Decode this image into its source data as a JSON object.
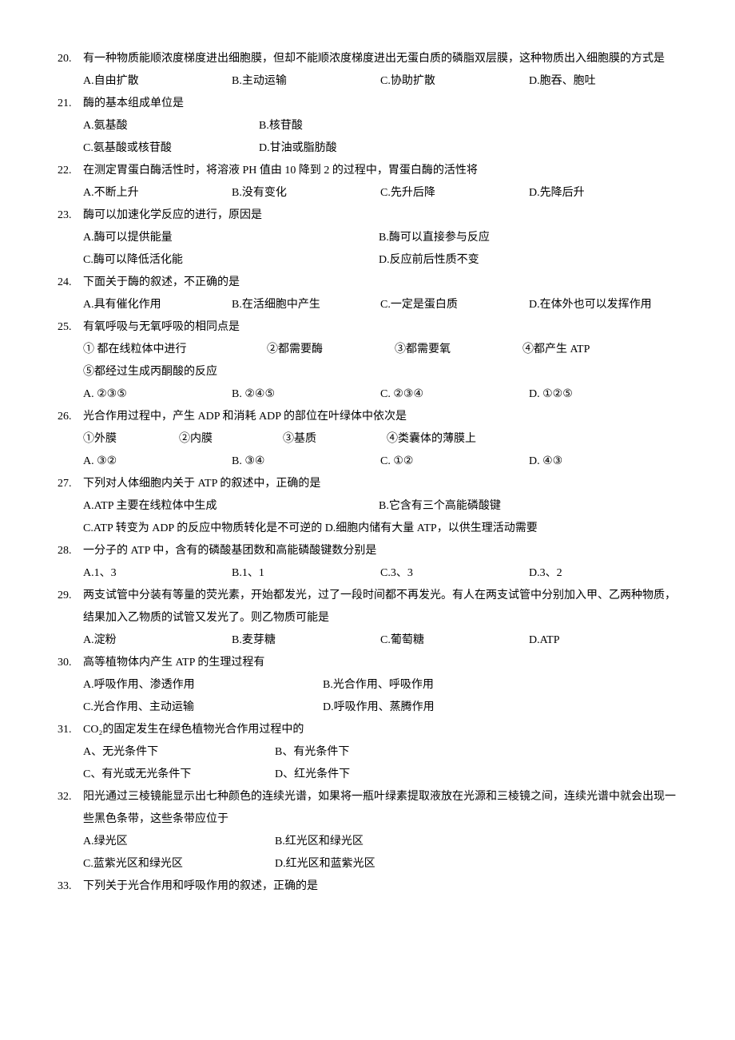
{
  "questions": [
    {
      "num": "20.",
      "stem": "有一种物质能顺浓度梯度进出细胞膜，但却不能顺浓度梯度进出无蛋白质的磷脂双层膜，这种物质出入细胞膜的方式是",
      "rows": [
        {
          "cols": 4,
          "items": [
            "A.自由扩散",
            "B.主动运输",
            "C.协助扩散",
            "D.胞吞、胞吐"
          ]
        }
      ]
    },
    {
      "num": "21.",
      "stem": "酶的基本组成单位是",
      "rows": [
        {
          "cols": 2,
          "items": [
            "A.氨基酸",
            "B.核苷酸"
          ],
          "widths": [
            220,
            220
          ]
        },
        {
          "cols": 2,
          "items": [
            "C.氨基酸或核苷酸",
            "D.甘油或脂肪酸"
          ],
          "widths": [
            220,
            220
          ]
        }
      ]
    },
    {
      "num": "22.",
      "stem": "在测定胃蛋白酶活性时，将溶液 PH 值由 10 降到 2 的过程中，胃蛋白酶的活性将",
      "rows": [
        {
          "cols": 4,
          "items": [
            "A.不断上升",
            "B.没有变化",
            "C.先升后降",
            "D.先降后升"
          ]
        }
      ]
    },
    {
      "num": "23.",
      "stem": "酶可以加速化学反应的进行，原因是",
      "rows": [
        {
          "cols": 2,
          "items": [
            "A.酶可以提供能量",
            "B.酶可以直接参与反应"
          ],
          "widths": [
            370,
            370
          ]
        },
        {
          "cols": 2,
          "items": [
            "C.酶可以降低活化能",
            "D.反应前后性质不变"
          ],
          "widths": [
            370,
            370
          ]
        }
      ]
    },
    {
      "num": "24.",
      "stem": "下面关于酶的叙述，不正确的是",
      "rows": [
        {
          "cols": 4,
          "items": [
            "A.具有催化作用",
            "B.在活细胞中产生",
            "C.一定是蛋白质",
            "D.在体外也可以发挥作用"
          ]
        }
      ]
    },
    {
      "num": "25.",
      "stem": "有氧呼吸与无氧呼吸的相同点是",
      "pre_rows": [
        {
          "items": [
            "① 都在线粒体中进行",
            "②都需要酶",
            "③都需要氧",
            "④都产生 ATP"
          ],
          "widths": [
            230,
            160,
            160,
            160
          ]
        },
        {
          "items": [
            "⑤都经过生成丙酮酸的反应"
          ],
          "widths": [
            700
          ]
        }
      ],
      "rows": [
        {
          "cols": 4,
          "items": [
            "A. ②③⑤",
            "B. ②④⑤",
            "C. ②③④",
            "D. ①②⑤"
          ]
        }
      ]
    },
    {
      "num": "26.",
      "stem": "光合作用过程中，产生 ADP 和消耗 ADP 的部位在叶绿体中依次是",
      "pre_rows": [
        {
          "items": [
            "①外膜",
            "②内膜",
            "③基质",
            "④类囊体的薄膜上"
          ],
          "widths": [
            120,
            130,
            130,
            200
          ]
        }
      ],
      "rows": [
        {
          "cols": 4,
          "items": [
            "A. ③②",
            "B. ③④",
            "C. ①②",
            "D. ④③"
          ]
        }
      ]
    },
    {
      "num": "27.",
      "stem": "下列对人体细胞内关于 ATP 的叙述中，正确的是",
      "rows": [
        {
          "cols": 2,
          "items": [
            "A.ATP 主要在线粒体中生成",
            "B.它含有三个高能磷酸键"
          ],
          "widths": [
            370,
            370
          ]
        },
        {
          "cols": 1,
          "items": [
            "C.ATP 转变为 ADP 的反应中物质转化是不可逆的 D.细胞内储有大量 ATP，以供生理活动需要"
          ]
        }
      ]
    },
    {
      "num": "28.",
      "stem": "一分子的 ATP 中，含有的磷酸基团数和高能磷酸键数分别是",
      "rows": [
        {
          "cols": 4,
          "items": [
            "A.1、3",
            "B.1、1",
            "C.3、3",
            "D.3、2"
          ]
        }
      ]
    },
    {
      "num": "29.",
      "stem": "两支试管中分装有等量的荧光素，开始都发光，过了一段时间都不再发光。有人在两支试管中分别加入甲、乙两种物质，结果加入乙物质的试管又发光了。则乙物质可能是",
      "rows": [
        {
          "cols": 4,
          "items": [
            "A.淀粉",
            "B.麦芽糖",
            "C.葡萄糖",
            "D.ATP"
          ]
        }
      ]
    },
    {
      "num": "30.",
      "stem": "高等植物体内产生 ATP 的生理过程有",
      "rows": [
        {
          "cols": 2,
          "items": [
            "A.呼吸作用、渗透作用",
            "B.光合作用、呼吸作用"
          ],
          "widths": [
            300,
            300
          ]
        },
        {
          "cols": 2,
          "items": [
            "C.光合作用、主动运输",
            "D.呼吸作用、蒸腾作用"
          ],
          "widths": [
            300,
            300
          ]
        }
      ]
    },
    {
      "num": "31.",
      "stem": "CO₂的固定发生在绿色植物光合作用过程中的",
      "rows": [
        {
          "cols": 2,
          "items": [
            "A、无光条件下",
            "B、有光条件下"
          ],
          "widths": [
            240,
            240
          ]
        },
        {
          "cols": 2,
          "items": [
            "C、有光或无光条件下",
            "D、红光条件下"
          ],
          "widths": [
            240,
            240
          ]
        }
      ]
    },
    {
      "num": "32.",
      "stem": "阳光通过三棱镜能显示出七种颜色的连续光谱，如果将一瓶叶绿素提取液放在光源和三棱镜之间，连续光谱中就会出现一些黑色条带，这些条带应位于",
      "rows": [
        {
          "cols": 2,
          "items": [
            "A.绿光区",
            "B.红光区和绿光区"
          ],
          "widths": [
            240,
            240
          ]
        },
        {
          "cols": 2,
          "items": [
            "C.蓝紫光区和绿光区",
            "D.红光区和蓝紫光区"
          ],
          "widths": [
            240,
            240
          ]
        }
      ]
    },
    {
      "num": "33.",
      "stem": "下列关于光合作用和呼吸作用的叙述，正确的是",
      "rows": []
    }
  ]
}
